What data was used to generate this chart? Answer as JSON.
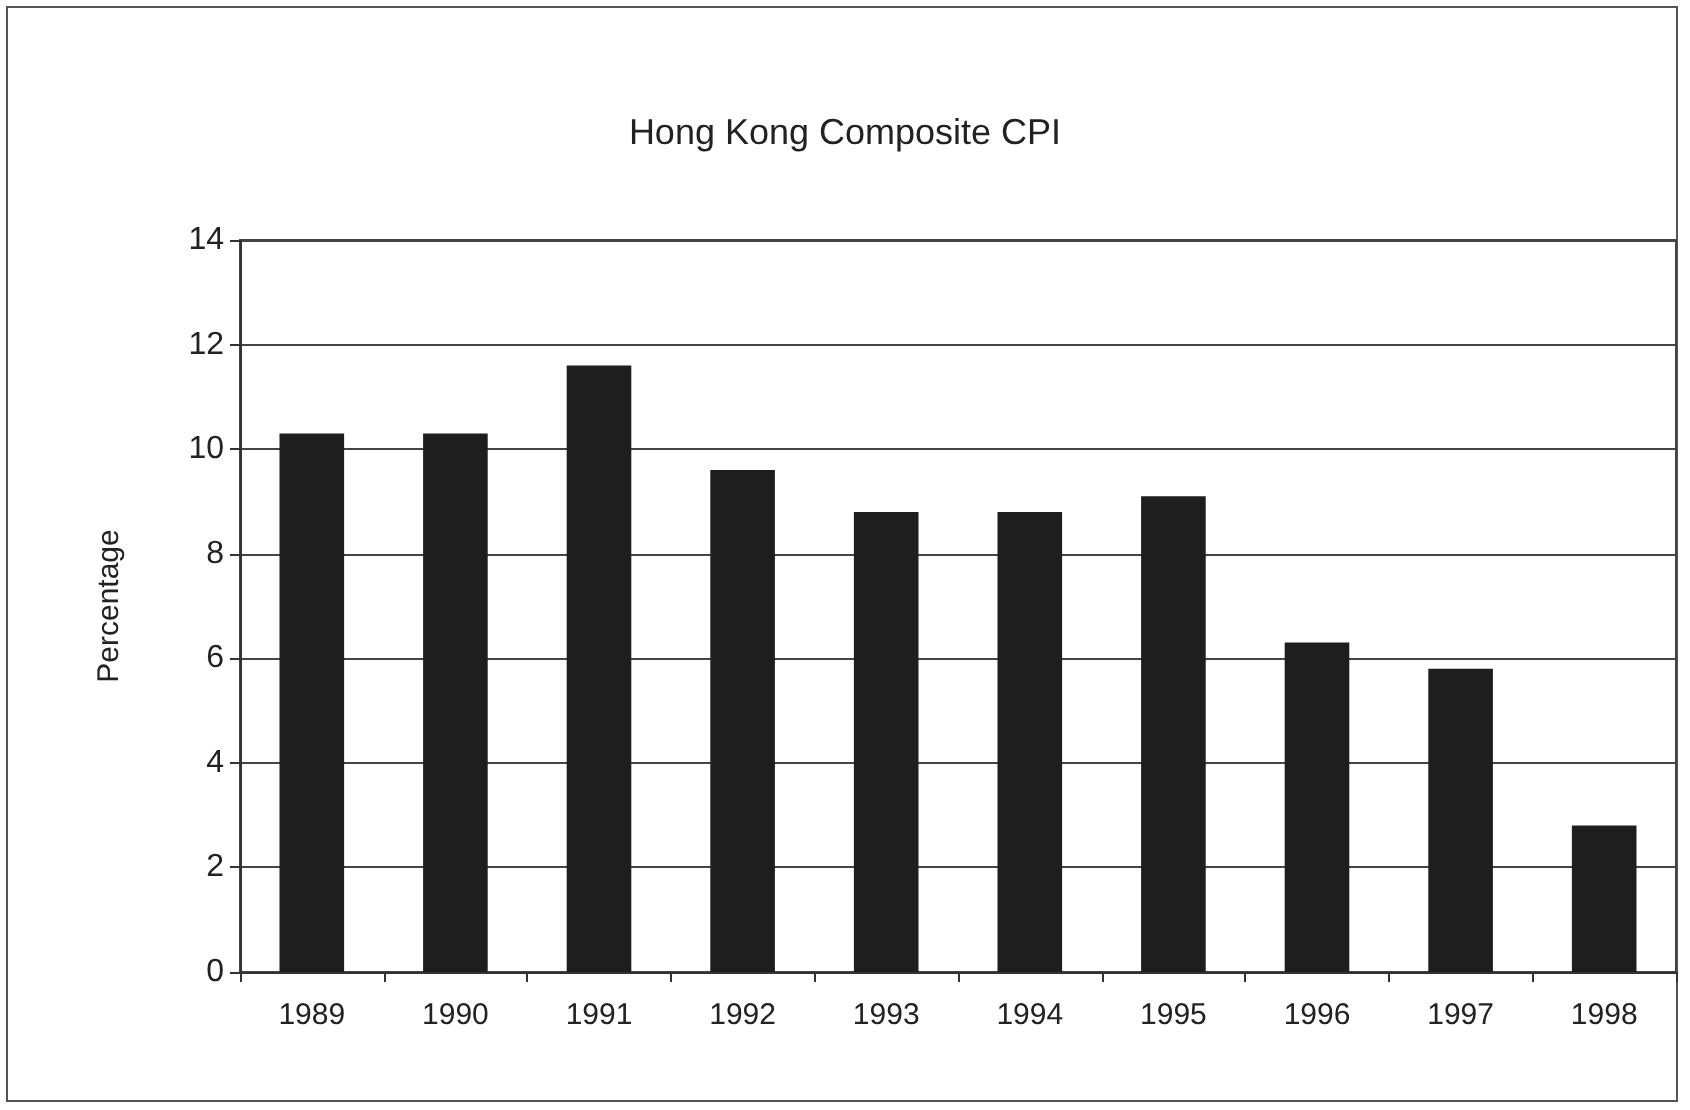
{
  "chart_data": {
    "type": "bar",
    "title": "Hong Kong Composite CPI",
    "ylabel": "Percentage",
    "categories": [
      "1989",
      "1990",
      "1991",
      "1992",
      "1993",
      "1994",
      "1995",
      "1996",
      "1997",
      "1998"
    ],
    "values": [
      10.3,
      10.3,
      11.6,
      9.6,
      8.8,
      8.8,
      9.1,
      6.3,
      5.8,
      2.8
    ],
    "color": "#1e1e1e",
    "ylim": [
      0,
      14
    ],
    "yticks": [
      0,
      2,
      4,
      6,
      8,
      10,
      12,
      14
    ],
    "grid": "y"
  }
}
